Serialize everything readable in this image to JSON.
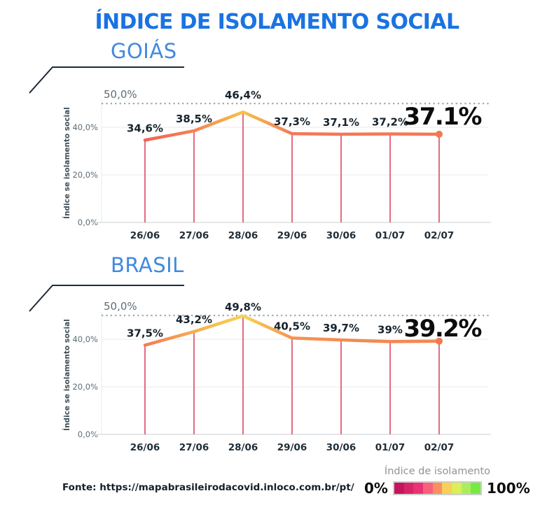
{
  "title": "ÍNDICE DE ISOLAMENTO SOCIAL",
  "colors": {
    "title_blue": "#1a73e2",
    "heading_blue": "#4189df",
    "decor_dark": "#1d2b39",
    "drop_line": "#dd4863",
    "end_dot": "#ef7950",
    "grid": "#ededee",
    "axis": "#dcdfe2",
    "ref_dotted": "#a6a6a6",
    "line_gradient_anchors": [
      {
        "value": 34,
        "color": "#ee605a"
      },
      {
        "value": 37,
        "color": "#f47656"
      },
      {
        "value": 39,
        "color": "#f58550"
      },
      {
        "value": 41,
        "color": "#f69851"
      },
      {
        "value": 43,
        "color": "#f6ab4f"
      },
      {
        "value": 46,
        "color": "#f7c04a"
      },
      {
        "value": 50,
        "color": "#f6d656"
      }
    ]
  },
  "chart_data": [
    {
      "type": "line",
      "title": "GOIÁS",
      "ylabel": "Índice se isolamento social",
      "categories": [
        "26/06",
        "27/06",
        "28/06",
        "29/06",
        "30/06",
        "01/07",
        "02/07"
      ],
      "values": [
        34.6,
        38.5,
        46.4,
        37.3,
        37.1,
        37.2,
        37.1
      ],
      "point_labels": [
        "34,6%",
        "38,5%",
        "46,4%",
        "37,3%",
        "37,1%",
        "37,2%",
        ""
      ],
      "final_label": "37.1%",
      "yticks": [
        {
          "v": 0,
          "label": "0,0%"
        },
        {
          "v": 20,
          "label": "20,0%"
        },
        {
          "v": 40,
          "label": "40,0%"
        }
      ],
      "ref_line": {
        "v": 50,
        "label": "50,0%"
      },
      "ylim": [
        0,
        50
      ],
      "grid": true,
      "legend_position": "none"
    },
    {
      "type": "line",
      "title": "BRASIL",
      "ylabel": "Índice se isolamento social",
      "categories": [
        "26/06",
        "27/06",
        "28/06",
        "29/06",
        "30/06",
        "01/07",
        "02/07"
      ],
      "values": [
        37.5,
        43.2,
        49.8,
        40.5,
        39.7,
        39.0,
        39.2
      ],
      "point_labels": [
        "37,5%",
        "43,2%",
        "49,8%",
        "40,5%",
        "39,7%",
        "39%",
        ""
      ],
      "final_label": "39.2%",
      "yticks": [
        {
          "v": 0,
          "label": "0,0%"
        },
        {
          "v": 20,
          "label": "20,0%"
        },
        {
          "v": 40,
          "label": "40,0%"
        }
      ],
      "ref_line": {
        "v": 50,
        "label": "50,0%"
      },
      "ylim": [
        0,
        50
      ],
      "grid": true,
      "legend_position": "none"
    }
  ],
  "footer": {
    "source": "Fonte: https://mapabrasileirodacovid.inloco.com.br/pt/"
  },
  "legend": {
    "title": "Índice de isolamento",
    "min": "0%",
    "max": "100%",
    "segments": [
      "#c6135e",
      "#d92367",
      "#e93273",
      "#f8607d",
      "#f98e63",
      "#f8cf57",
      "#dcee58",
      "#aced5f",
      "#78ea43"
    ]
  }
}
